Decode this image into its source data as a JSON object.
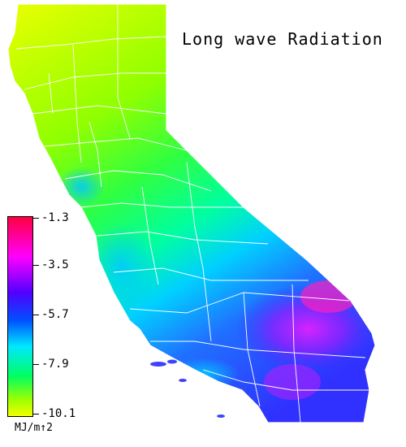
{
  "title": "Long wave Radiation",
  "legend": {
    "ticks": [
      "-1.3",
      "-3.5",
      "-5.7",
      "-7.9",
      "-10.1"
    ],
    "units": "MJ/m↑2",
    "colors": [
      "#ff0040",
      "#ff00ff",
      "#5000ff",
      "#0050ff",
      "#00e8ff",
      "#00ff60",
      "#a0ff00",
      "#f0ff00"
    ]
  },
  "map": {
    "region": "california-outline",
    "boundaries": "county-lines"
  }
}
